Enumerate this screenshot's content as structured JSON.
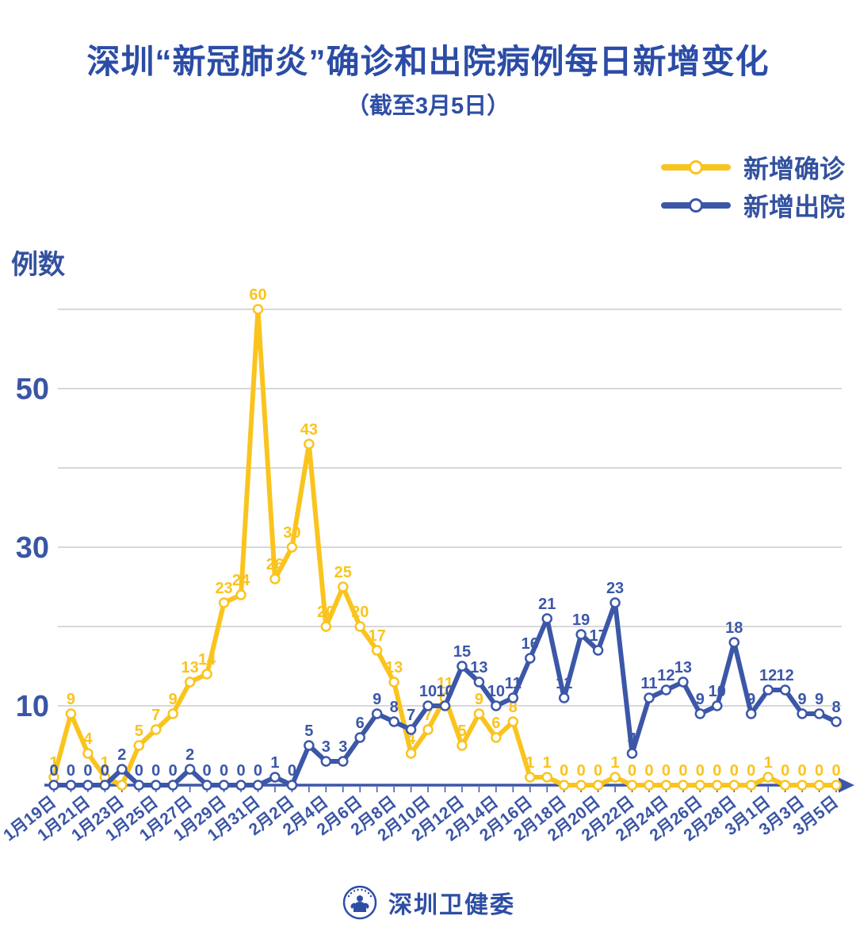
{
  "header": {
    "title": "深圳“新冠肺炎”确诊和出院病例每日新增变化",
    "subtitle": "（截至3月5日）"
  },
  "legend": {
    "items": [
      {
        "label": "新增确诊",
        "color": "#fac41e"
      },
      {
        "label": "新增出院",
        "color": "#3c57a8"
      }
    ]
  },
  "colors": {
    "accent_yellow": "#fac41e",
    "accent_blue": "#3c57a8",
    "text_blue": "#3a55a6",
    "title_blue": "#2b4ca6",
    "grid": "#cbcbcb"
  },
  "footer": {
    "org": "深圳卫健委",
    "logo": "shenzhen-health-commission-emblem"
  },
  "chart_data": {
    "type": "line",
    "title": "深圳“新冠肺炎”确诊和出院病例每日新增变化",
    "subtitle": "（截至3月5日）",
    "ylabel": "例数",
    "xlabel": "",
    "grid": true,
    "legend_position": "top-right",
    "ylim": [
      0,
      62
    ],
    "gridlines": [
      10,
      20,
      30,
      40,
      50,
      60
    ],
    "ytick_labels": [
      10,
      30,
      50
    ],
    "x_label_interval": 2,
    "x": [
      "1月19日",
      "1月20日",
      "1月21日",
      "1月22日",
      "1月23日",
      "1月24日",
      "1月25日",
      "1月26日",
      "1月27日",
      "1月28日",
      "1月29日",
      "1月30日",
      "1月31日",
      "2月1日",
      "2月2日",
      "2月3日",
      "2月4日",
      "2月5日",
      "2月6日",
      "2月7日",
      "2月8日",
      "2月9日",
      "2月10日",
      "2月11日",
      "2月12日",
      "2月13日",
      "2月14日",
      "2月15日",
      "2月16日",
      "2月17日",
      "2月18日",
      "2月19日",
      "2月20日",
      "2月21日",
      "2月22日",
      "2月23日",
      "2月24日",
      "2月25日",
      "2月26日",
      "2月27日",
      "2月28日",
      "2月29日",
      "3月1日",
      "3月2日",
      "3月3日",
      "3月4日",
      "3月5日"
    ],
    "series": [
      {
        "name": "新增确诊",
        "color": "#fac41e",
        "values": [
          1,
          9,
          4,
          1,
          0,
          5,
          7,
          9,
          13,
          14,
          23,
          24,
          60,
          26,
          30,
          43,
          20,
          25,
          20,
          17,
          13,
          4,
          7,
          11,
          5,
          9,
          6,
          8,
          1,
          1,
          0,
          0,
          0,
          1,
          0,
          0,
          0,
          0,
          0,
          0,
          0,
          0,
          1,
          0,
          0,
          0,
          0
        ],
        "label_hidden_indices": [
          4
        ]
      },
      {
        "name": "新增出院",
        "color": "#3c57a8",
        "values": [
          0,
          0,
          0,
          0,
          2,
          0,
          0,
          0,
          2,
          0,
          0,
          0,
          0,
          1,
          0,
          5,
          3,
          3,
          6,
          9,
          8,
          7,
          10,
          10,
          15,
          13,
          10,
          11,
          16,
          21,
          11,
          19,
          17,
          23,
          4,
          11,
          12,
          13,
          9,
          10,
          18,
          9,
          12,
          12,
          9,
          9,
          8
        ],
        "label_hidden_indices": []
      }
    ]
  }
}
